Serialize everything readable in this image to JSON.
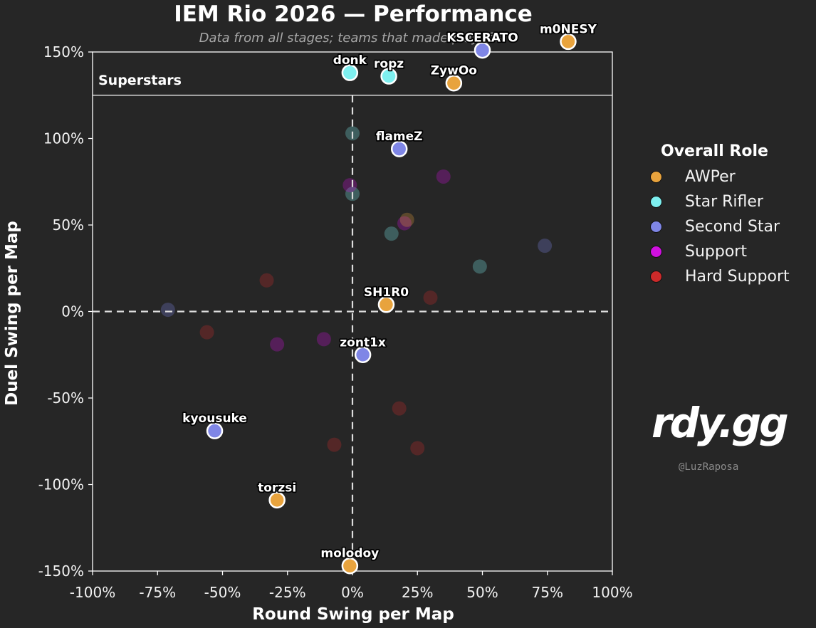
{
  "header": {
    "title": "IEM Rio 2026 — Performance",
    "subtitle": "Data from all stages; teams that made playoffs."
  },
  "legend": {
    "title": "Overall Role",
    "items": [
      {
        "label": "AWPer",
        "color": "#e8a33d"
      },
      {
        "label": "Star Rifler",
        "color": "#7ef0f0"
      },
      {
        "label": "Second Star",
        "color": "#7f86e6"
      },
      {
        "label": "Support",
        "color": "#d010e0"
      },
      {
        "label": "Hard Support",
        "color": "#cc2a2a"
      }
    ]
  },
  "branding": {
    "logo": "rdy.gg",
    "handle": "@LuzRaposa"
  },
  "chart_data": {
    "type": "scatter",
    "title": "IEM Rio 2026 — Performance",
    "subtitle": "Data from all stages; teams that made playoffs.",
    "xlabel": "Round Swing per Map",
    "ylabel": "Duel Swing per Map",
    "xlim": [
      -100,
      100
    ],
    "ylim": [
      -150,
      150
    ],
    "x_ticks": [
      "-100%",
      "-75%",
      "-50%",
      "-25%",
      "0%",
      "25%",
      "50%",
      "75%",
      "100%"
    ],
    "y_ticks": [
      "150%",
      "100%",
      "50%",
      "0%",
      "-50%",
      "-100%",
      "-150%"
    ],
    "x_tick_values": [
      -100,
      -75,
      -50,
      -25,
      0,
      25,
      50,
      75,
      100
    ],
    "y_tick_values": [
      150,
      100,
      50,
      0,
      -50,
      -100,
      -150
    ],
    "reference_lines": {
      "x": 0,
      "y": 0,
      "style": "dashed"
    },
    "region": {
      "label": "Superstars",
      "y_min": 125
    },
    "grid": false,
    "legend_position": "right",
    "highlighted": [
      {
        "name": "m0NESY",
        "role": "AWPer",
        "x": 83,
        "y": 156
      },
      {
        "name": "KSCERATO",
        "role": "Second Star",
        "x": 50,
        "y": 151
      },
      {
        "name": "donk",
        "role": "Star Rifler",
        "x": -1,
        "y": 138
      },
      {
        "name": "ropz",
        "role": "Star Rifler",
        "x": 14,
        "y": 136
      },
      {
        "name": "ZywOo",
        "role": "AWPer",
        "x": 39,
        "y": 132
      },
      {
        "name": "flameZ",
        "role": "Second Star",
        "x": 18,
        "y": 94
      },
      {
        "name": "SH1R0",
        "role": "AWPer",
        "x": 13,
        "y": 4
      },
      {
        "name": "zont1x",
        "role": "Second Star",
        "x": 4,
        "y": -25
      },
      {
        "name": "kyousuke",
        "role": "Second Star",
        "x": -53,
        "y": -69
      },
      {
        "name": "torzsi",
        "role": "AWPer",
        "x": -29,
        "y": -109
      },
      {
        "name": "molodoy",
        "role": "AWPer",
        "x": -1,
        "y": -147
      }
    ],
    "others": [
      {
        "role": "Star Rifler",
        "x": 0,
        "y": 103
      },
      {
        "role": "Star Rifler",
        "x": 0,
        "y": 68
      },
      {
        "role": "Star Rifler",
        "x": 15,
        "y": 45
      },
      {
        "role": "Star Rifler",
        "x": 49,
        "y": 26
      },
      {
        "role": "Support",
        "x": -1,
        "y": 73
      },
      {
        "role": "Support",
        "x": 35,
        "y": 78
      },
      {
        "role": "Support",
        "x": 20,
        "y": 51
      },
      {
        "role": "Support",
        "x": -29,
        "y": -19
      },
      {
        "role": "Support",
        "x": -11,
        "y": -16
      },
      {
        "role": "AWPer",
        "x": 21,
        "y": 53
      },
      {
        "role": "Second Star",
        "x": 74,
        "y": 38
      },
      {
        "role": "Second Star",
        "x": -71,
        "y": 1
      },
      {
        "role": "Hard Support",
        "x": -33,
        "y": 18
      },
      {
        "role": "Hard Support",
        "x": 30,
        "y": 8
      },
      {
        "role": "Hard Support",
        "x": -56,
        "y": -12
      },
      {
        "role": "Hard Support",
        "x": 18,
        "y": -56
      },
      {
        "role": "Hard Support",
        "x": -7,
        "y": -77
      },
      {
        "role": "Hard Support",
        "x": 25,
        "y": -79
      }
    ]
  }
}
